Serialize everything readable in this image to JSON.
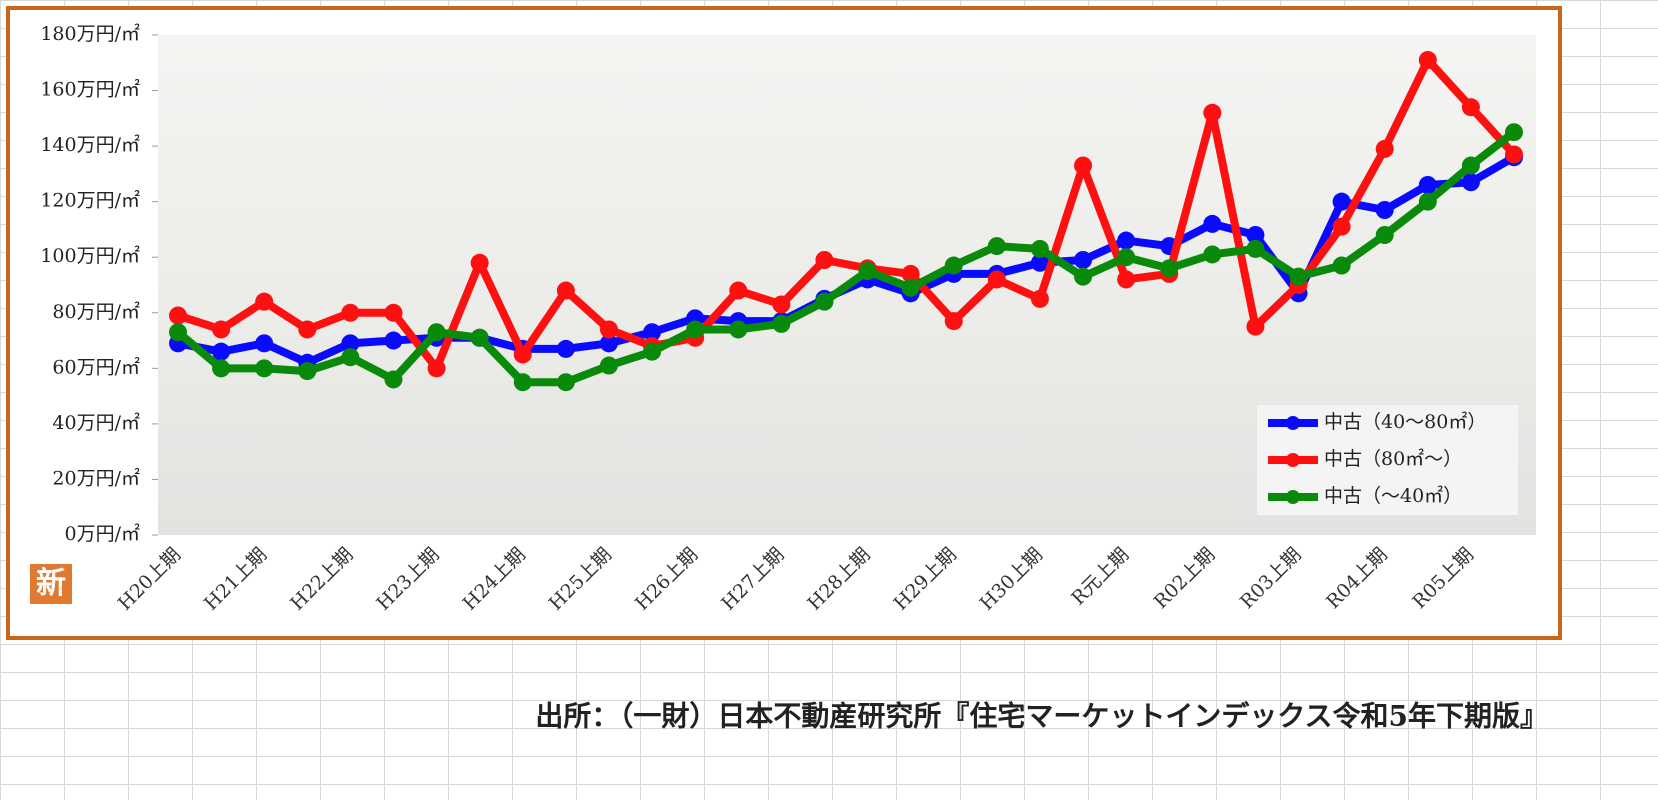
{
  "chart_data": {
    "type": "line",
    "categories": [
      "H20上期",
      null,
      "H21上期",
      null,
      "H22上期",
      null,
      "H23上期",
      null,
      "H24上期",
      null,
      "H25上期",
      null,
      "H26上期",
      null,
      "H27上期",
      null,
      "H28上期",
      null,
      "H29上期",
      null,
      "H30上期",
      null,
      "R元上期",
      null,
      "R02上期",
      null,
      "R03上期",
      null,
      "R04上期",
      null,
      "R05上期",
      null
    ],
    "series": [
      {
        "name": "中古（40～80㎡）",
        "color": "#0a0aff",
        "values": [
          69,
          66,
          69,
          62,
          69,
          70,
          71,
          71,
          67,
          67,
          69,
          73,
          78,
          77,
          77,
          85,
          92,
          87,
          94,
          94,
          98,
          99,
          106,
          104,
          112,
          108,
          87,
          120,
          117,
          126,
          127,
          136
        ]
      },
      {
        "name": "中古（80㎡～）",
        "color": "#ff1010",
        "values": [
          79,
          74,
          84,
          74,
          80,
          80,
          60,
          98,
          65,
          88,
          74,
          68,
          71,
          88,
          83,
          99,
          96,
          94,
          77,
          92,
          85,
          133,
          92,
          94,
          152,
          75,
          90,
          111,
          139,
          171,
          154,
          137
        ]
      },
      {
        "name": "中古（～40㎡）",
        "color": "#0a8a0a",
        "values": [
          73,
          60,
          60,
          59,
          64,
          56,
          73,
          71,
          55,
          55,
          61,
          66,
          74,
          74,
          76,
          84,
          95,
          89,
          97,
          104,
          103,
          93,
          100,
          96,
          101,
          103,
          93,
          97,
          108,
          120,
          133,
          145
        ]
      }
    ],
    "ylim": [
      0,
      180
    ],
    "yticks": [
      {
        "value": 0,
        "label": "0万円/㎡"
      },
      {
        "value": 20,
        "label": "20万円/㎡"
      },
      {
        "value": 40,
        "label": "40万円/㎡"
      },
      {
        "value": 60,
        "label": "60万円/㎡"
      },
      {
        "value": 80,
        "label": "80万円/㎡"
      },
      {
        "value": 100,
        "label": "100万円/㎡"
      },
      {
        "value": 120,
        "label": "120万円/㎡"
      },
      {
        "value": 140,
        "label": "140万円/㎡"
      },
      {
        "value": 160,
        "label": "160万円/㎡"
      },
      {
        "value": 180,
        "label": "180万円/㎡"
      }
    ],
    "legend": "lower right",
    "badge": "新",
    "source": "出所：（一財）日本不動産研究所『住宅マーケットインデックス令和5年下期版』"
  }
}
